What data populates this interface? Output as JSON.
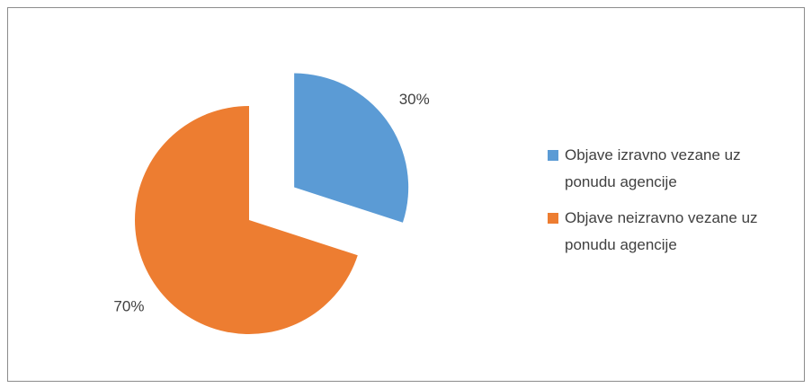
{
  "chart_data": {
    "type": "pie",
    "categories": [
      "Objave izravno vezane uz ponudu agencije",
      "Objave neizravno vezane uz ponudu agencije"
    ],
    "values": [
      30,
      70
    ],
    "value_labels": [
      "30%",
      "70%"
    ],
    "colors": [
      "#5b9bd5",
      "#ed7d31"
    ],
    "exploded": [
      0
    ],
    "legend": "right"
  }
}
